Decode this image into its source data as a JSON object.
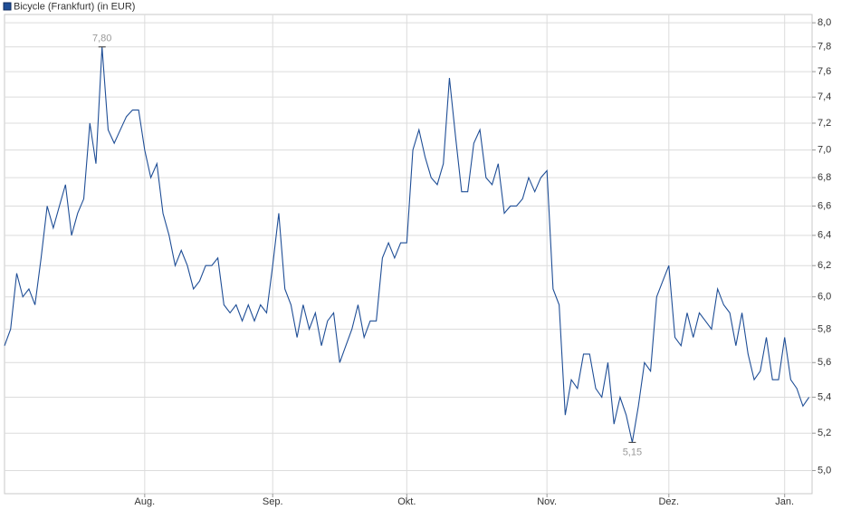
{
  "chart_data": {
    "type": "line",
    "log_scale": true,
    "grid": true,
    "series": [
      {
        "name": "Bicycle (Frankfurt) (in EUR)",
        "color": "#1f4e96",
        "x": [
          0,
          1,
          2,
          3,
          4,
          5,
          6,
          7,
          8,
          9,
          10,
          11,
          12,
          13,
          14,
          15,
          16,
          17,
          18,
          19,
          20,
          21,
          22,
          23,
          24,
          25,
          26,
          27,
          28,
          29,
          30,
          31,
          32,
          33,
          34,
          35,
          36,
          37,
          38,
          39,
          40,
          41,
          42,
          43,
          44,
          45,
          46,
          47,
          48,
          49,
          50,
          51,
          52,
          53,
          54,
          55,
          56,
          57,
          58,
          59,
          60,
          61,
          62,
          63,
          64,
          65,
          66,
          67,
          68,
          69,
          70,
          71,
          72,
          73,
          74,
          75,
          76,
          77,
          78,
          79,
          80,
          81,
          82,
          83,
          84,
          85,
          86,
          87,
          88,
          89,
          90,
          91,
          92,
          93,
          94,
          95,
          96,
          97,
          98,
          99,
          100,
          101,
          102,
          103,
          104,
          105,
          106,
          107,
          108,
          109,
          110,
          111,
          112,
          113,
          114,
          115,
          116,
          117,
          118,
          119,
          120,
          121,
          122,
          123,
          124,
          125,
          126,
          127,
          128,
          129,
          130,
          131,
          132
        ],
        "values": [
          5.7,
          5.8,
          6.15,
          6.0,
          6.05,
          5.95,
          6.25,
          6.6,
          6.45,
          6.6,
          6.75,
          6.4,
          6.55,
          6.65,
          7.2,
          6.9,
          7.8,
          7.15,
          7.05,
          7.15,
          7.25,
          7.3,
          7.3,
          7.0,
          6.8,
          6.9,
          6.55,
          6.4,
          6.2,
          6.3,
          6.2,
          6.05,
          6.1,
          6.2,
          6.2,
          6.25,
          5.95,
          5.9,
          5.95,
          5.85,
          5.95,
          5.85,
          5.95,
          5.9,
          6.2,
          6.55,
          6.05,
          5.95,
          5.75,
          5.95,
          5.8,
          5.9,
          5.7,
          5.85,
          5.9,
          5.6,
          5.7,
          5.8,
          5.95,
          5.75,
          5.85,
          5.85,
          6.25,
          6.35,
          6.25,
          6.35,
          6.35,
          7.0,
          7.15,
          6.95,
          6.8,
          6.75,
          6.9,
          7.55,
          7.1,
          6.7,
          6.7,
          7.05,
          7.15,
          6.8,
          6.75,
          6.9,
          6.55,
          6.6,
          6.6,
          6.65,
          6.8,
          6.7,
          6.8,
          6.85,
          6.05,
          5.95,
          5.3,
          5.5,
          5.45,
          5.65,
          5.65,
          5.45,
          5.4,
          5.6,
          5.25,
          5.4,
          5.3,
          5.15,
          5.35,
          5.6,
          5.55,
          6.0,
          6.1,
          6.2,
          5.75,
          5.7,
          5.9,
          5.75,
          5.9,
          5.85,
          5.8,
          6.05,
          5.95,
          5.9,
          5.7,
          5.9,
          5.65,
          5.5,
          5.55,
          5.75,
          5.5,
          5.5,
          5.75,
          5.5,
          5.45,
          5.35,
          5.4
        ]
      }
    ],
    "annotations": [
      {
        "x": 16,
        "value": 7.8,
        "label": "7,80"
      },
      {
        "x": 103,
        "value": 5.15,
        "label": "5,15"
      }
    ],
    "xlim": [
      0,
      132.5
    ],
    "xticks": [
      {
        "value": 23,
        "label": "Aug."
      },
      {
        "value": 44,
        "label": "Sep."
      },
      {
        "value": 66,
        "label": "Okt."
      },
      {
        "value": 89,
        "label": "Nov."
      },
      {
        "value": 109,
        "label": "Dez."
      },
      {
        "value": 128,
        "label": "Jan."
      }
    ],
    "ylim": [
      4.88,
      8.07
    ],
    "yticks": [
      {
        "value": 5.0,
        "label": "5,0"
      },
      {
        "value": 5.2,
        "label": "5,2"
      },
      {
        "value": 5.4,
        "label": "5,4"
      },
      {
        "value": 5.6,
        "label": "5,6"
      },
      {
        "value": 5.8,
        "label": "5,8"
      },
      {
        "value": 6.0,
        "label": "6,0"
      },
      {
        "value": 6.2,
        "label": "6,2"
      },
      {
        "value": 6.4,
        "label": "6,4"
      },
      {
        "value": 6.6,
        "label": "6,6"
      },
      {
        "value": 6.8,
        "label": "6,8"
      },
      {
        "value": 7.0,
        "label": "7,0"
      },
      {
        "value": 7.2,
        "label": "7,2"
      },
      {
        "value": 7.4,
        "label": "7,4"
      },
      {
        "value": 7.6,
        "label": "7,6"
      },
      {
        "value": 7.8,
        "label": "7,8"
      },
      {
        "value": 8.0,
        "label": "8,0"
      }
    ]
  }
}
